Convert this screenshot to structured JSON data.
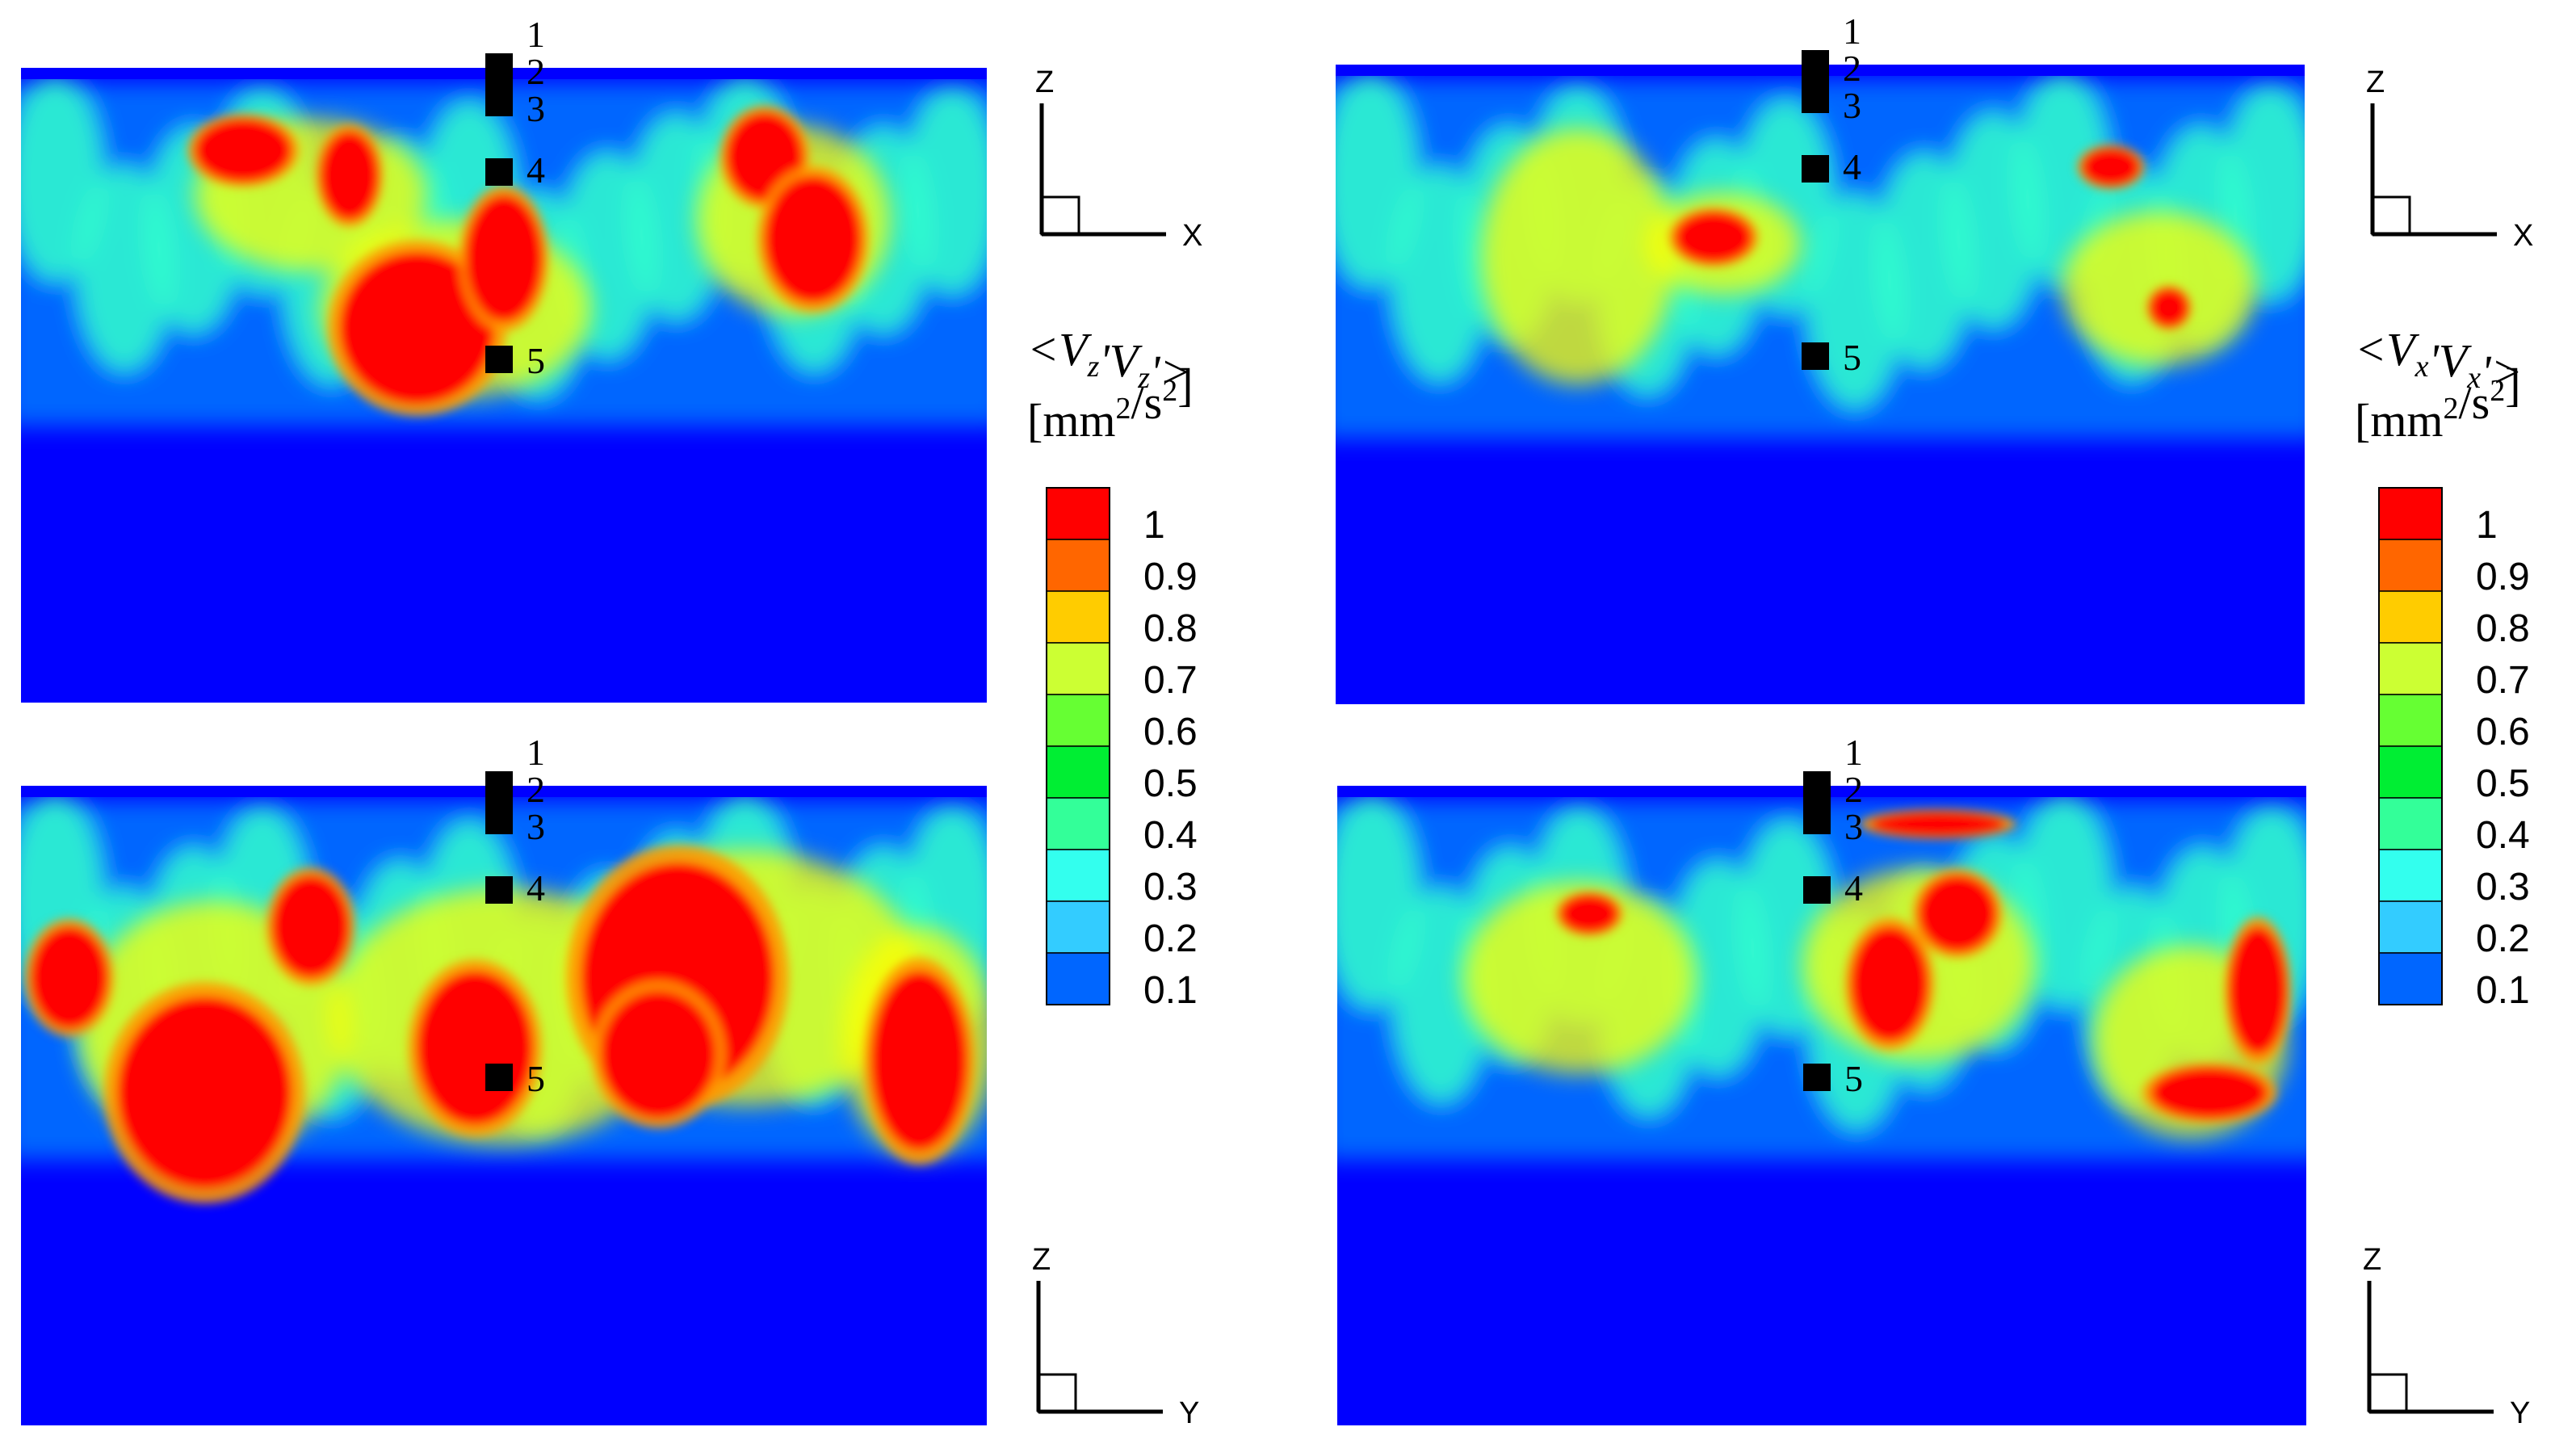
{
  "chart_data": [
    {
      "type": "heatmap",
      "panel": "top-left",
      "quantity_label": "<Vz'Vz'>",
      "units": "[mm2/s2]",
      "axes_indicator": {
        "horizontal": "X",
        "vertical": "Z"
      },
      "probe_labels": [
        "1",
        "2",
        "3",
        "4",
        "5"
      ],
      "hot_regions": [
        {
          "cx": 0.23,
          "cy": 0.13,
          "rx": 0.05,
          "ry": 0.05
        },
        {
          "cx": 0.34,
          "cy": 0.17,
          "rx": 0.03,
          "ry": 0.07
        },
        {
          "cx": 0.41,
          "cy": 0.41,
          "rx": 0.08,
          "ry": 0.12
        },
        {
          "cx": 0.5,
          "cy": 0.3,
          "rx": 0.04,
          "ry": 0.1
        },
        {
          "cx": 0.77,
          "cy": 0.14,
          "rx": 0.04,
          "ry": 0.07
        },
        {
          "cx": 0.82,
          "cy": 0.27,
          "rx": 0.05,
          "ry": 0.1
        }
      ],
      "warm_regions": [
        {
          "cx": 0.3,
          "cy": 0.2,
          "rx": 0.12,
          "ry": 0.12
        },
        {
          "cx": 0.45,
          "cy": 0.38,
          "rx": 0.14,
          "ry": 0.14
        },
        {
          "cx": 0.8,
          "cy": 0.24,
          "rx": 0.1,
          "ry": 0.15
        }
      ]
    },
    {
      "type": "heatmap",
      "panel": "top-right",
      "quantity_label": "<Vx'Vx'>",
      "units": "[mm2/s2]",
      "axes_indicator": {
        "horizontal": "X",
        "vertical": "Z"
      },
      "probe_labels": [
        "1",
        "2",
        "3",
        "4",
        "5"
      ],
      "hot_regions": [
        {
          "cx": 0.39,
          "cy": 0.27,
          "rx": 0.04,
          "ry": 0.04
        },
        {
          "cx": 0.8,
          "cy": 0.16,
          "rx": 0.03,
          "ry": 0.03
        },
        {
          "cx": 0.86,
          "cy": 0.38,
          "rx": 0.02,
          "ry": 0.03
        }
      ],
      "warm_regions": [
        {
          "cx": 0.25,
          "cy": 0.3,
          "rx": 0.1,
          "ry": 0.2
        },
        {
          "cx": 0.4,
          "cy": 0.28,
          "rx": 0.08,
          "ry": 0.08
        },
        {
          "cx": 0.85,
          "cy": 0.35,
          "rx": 0.1,
          "ry": 0.12
        }
      ]
    },
    {
      "type": "heatmap",
      "panel": "bottom-left",
      "quantity_label": "<Vz'Vz'>",
      "units": "[mm2/s2]",
      "axes_indicator": {
        "horizontal": "Y",
        "vertical": "Z"
      },
      "probe_labels": [
        "1",
        "2",
        "3",
        "4",
        "5"
      ],
      "hot_regions": [
        {
          "cx": 0.05,
          "cy": 0.3,
          "rx": 0.04,
          "ry": 0.08
        },
        {
          "cx": 0.19,
          "cy": 0.48,
          "rx": 0.09,
          "ry": 0.15
        },
        {
          "cx": 0.3,
          "cy": 0.22,
          "rx": 0.04,
          "ry": 0.08
        },
        {
          "cx": 0.47,
          "cy": 0.41,
          "rx": 0.06,
          "ry": 0.12
        },
        {
          "cx": 0.68,
          "cy": 0.3,
          "rx": 0.1,
          "ry": 0.18
        },
        {
          "cx": 0.66,
          "cy": 0.42,
          "rx": 0.06,
          "ry": 0.1
        },
        {
          "cx": 0.93,
          "cy": 0.43,
          "rx": 0.05,
          "ry": 0.14
        }
      ],
      "warm_regions": [
        {
          "cx": 0.2,
          "cy": 0.38,
          "rx": 0.14,
          "ry": 0.2
        },
        {
          "cx": 0.5,
          "cy": 0.36,
          "rx": 0.18,
          "ry": 0.2
        },
        {
          "cx": 0.75,
          "cy": 0.3,
          "rx": 0.18,
          "ry": 0.2
        },
        {
          "cx": 0.93,
          "cy": 0.4,
          "rx": 0.08,
          "ry": 0.18
        }
      ]
    },
    {
      "type": "heatmap",
      "panel": "bottom-right",
      "quantity_label": "<Vx'Vx'>",
      "units": "[mm2/s2]",
      "axes_indicator": {
        "horizontal": "Y",
        "vertical": "Z"
      },
      "probe_labels": [
        "1",
        "2",
        "3",
        "4",
        "5"
      ],
      "hot_regions": [
        {
          "cx": 0.62,
          "cy": 0.06,
          "rx": 0.07,
          "ry": 0.02
        },
        {
          "cx": 0.64,
          "cy": 0.2,
          "rx": 0.04,
          "ry": 0.06
        },
        {
          "cx": 0.57,
          "cy": 0.31,
          "rx": 0.04,
          "ry": 0.09
        },
        {
          "cx": 0.26,
          "cy": 0.2,
          "rx": 0.03,
          "ry": 0.03
        },
        {
          "cx": 0.95,
          "cy": 0.32,
          "rx": 0.03,
          "ry": 0.1
        },
        {
          "cx": 0.9,
          "cy": 0.48,
          "rx": 0.06,
          "ry": 0.04
        }
      ],
      "warm_regions": [
        {
          "cx": 0.6,
          "cy": 0.28,
          "rx": 0.12,
          "ry": 0.15
        },
        {
          "cx": 0.88,
          "cy": 0.4,
          "rx": 0.1,
          "ry": 0.15
        },
        {
          "cx": 0.25,
          "cy": 0.3,
          "rx": 0.12,
          "ry": 0.15
        }
      ]
    }
  ],
  "legends": [
    {
      "panel": "left",
      "label_prefix": "<V",
      "sub": "z",
      "middle": "'V",
      "sub2": "z",
      "suffix": "'>",
      "units_main": "[mm",
      "units_sup": "2",
      "units_mid": "/s",
      "units_sup2": "2",
      "units_end": "]"
    },
    {
      "panel": "right",
      "label_prefix": "<V",
      "sub": "x",
      "middle": "'V",
      "sub2": "x",
      "suffix": "'>",
      "units_main": "[mm",
      "units_sup": "2",
      "units_mid": "/s",
      "units_sup2": "2",
      "units_end": "]"
    }
  ],
  "colorbar": {
    "levels": [
      "1",
      "0.9",
      "0.8",
      "0.7",
      "0.6",
      "0.5",
      "0.4",
      "0.3",
      "0.2",
      "0.1"
    ],
    "colors": [
      "#ff0000",
      "#ff6600",
      "#ffcc00",
      "#ccff33",
      "#66ff33",
      "#00ee33",
      "#33ff99",
      "#33ffee",
      "#33ccff",
      "#0066ff",
      "#0000ff"
    ]
  },
  "colors": {
    "background_flow": "#0000ff",
    "low": "#0066ff",
    "mid": "#33ffcc",
    "warm": "#ffff00",
    "hot": "#ff0000",
    "probe": "#000000"
  }
}
